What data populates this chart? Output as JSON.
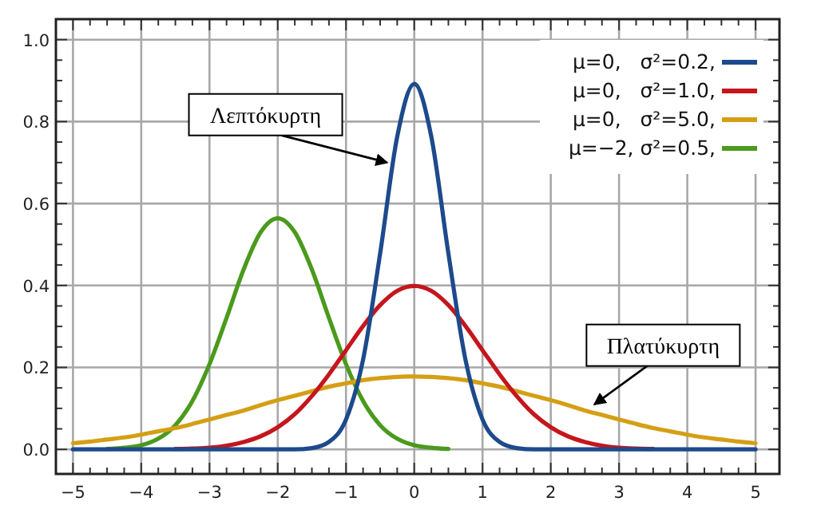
{
  "chart_data": {
    "type": "line",
    "x": [
      -5,
      -4.75,
      -4.5,
      -4.25,
      -4,
      -3.75,
      -3.5,
      -3.25,
      -3,
      -2.75,
      -2.5,
      -2.25,
      -2,
      -1.75,
      -1.5,
      -1.25,
      -1,
      -0.75,
      -0.5,
      -0.25,
      0,
      0.25,
      0.5,
      0.75,
      1,
      1.25,
      1.5,
      1.75,
      2,
      2.25,
      2.5,
      2.75,
      3,
      3.25,
      3.5,
      3.75,
      4,
      4.25,
      4.5,
      4.75,
      5
    ],
    "series": [
      {
        "name": "μ=0,   σ²=0.2,",
        "color": "#1d4a8c",
        "values": [
          0,
          0,
          0,
          0,
          0,
          0,
          0,
          0,
          0,
          0,
          0,
          0,
          0,
          0,
          0.003,
          0.018,
          0.073,
          0.219,
          0.478,
          0.763,
          0.892,
          0.763,
          0.478,
          0.219,
          0.073,
          0.018,
          0.003,
          0,
          0,
          0,
          0,
          0,
          0,
          0,
          0,
          0,
          0,
          0,
          0,
          0,
          0
        ]
      },
      {
        "name": "μ=0,   σ²=1.0,",
        "color": "#c4161c",
        "values": [
          null,
          null,
          null,
          null,
          null,
          null,
          0.001,
          0.002,
          0.004,
          0.009,
          0.018,
          0.032,
          0.054,
          0.086,
          0.13,
          0.183,
          0.242,
          0.301,
          0.352,
          0.387,
          0.399,
          0.387,
          0.352,
          0.301,
          0.242,
          0.183,
          0.13,
          0.086,
          0.054,
          0.032,
          0.018,
          0.009,
          0.004,
          0.002,
          0.001,
          null,
          null,
          null,
          null,
          null,
          null
        ]
      },
      {
        "name": "μ=0,   σ²=5.0,",
        "color": "#d59f14",
        "values": [
          0.015,
          0.019,
          0.024,
          0.029,
          0.036,
          0.044,
          0.052,
          0.062,
          0.073,
          0.084,
          0.095,
          0.108,
          0.12,
          0.131,
          0.142,
          0.153,
          0.161,
          0.169,
          0.174,
          0.177,
          0.178,
          0.177,
          0.174,
          0.169,
          0.161,
          0.153,
          0.142,
          0.131,
          0.12,
          0.108,
          0.095,
          0.084,
          0.073,
          0.062,
          0.052,
          0.044,
          0.036,
          0.029,
          0.024,
          0.019,
          0.015
        ]
      },
      {
        "name": "μ=−2, σ²=0.5,",
        "color": "#4a9a1c",
        "values": [
          null,
          null,
          0.001,
          0.004,
          0.01,
          0.026,
          0.059,
          0.118,
          0.208,
          0.321,
          0.439,
          0.53,
          0.564,
          0.53,
          0.439,
          0.321,
          0.208,
          0.118,
          0.059,
          0.026,
          0.01,
          0.004,
          0.001,
          null,
          null,
          null,
          null,
          null,
          null,
          null,
          null,
          null,
          null,
          null,
          null,
          null,
          null,
          null,
          null,
          null,
          null
        ]
      }
    ],
    "xlim": [
      -5.25,
      5.35
    ],
    "ylim": [
      -0.06,
      1.05
    ],
    "xticks": [
      -5,
      {
        "value": -4.75,
        "label": null
      },
      {
        "value": -4.5,
        "label": null
      },
      {
        "value": -4.25,
        "label": null
      },
      -4,
      {
        "value": -3.75,
        "label": null
      },
      {
        "value": -3.5,
        "label": null
      },
      {
        "value": -3.25,
        "label": null
      },
      -3,
      {
        "value": -2.75,
        "label": null
      },
      {
        "value": -2.5,
        "label": null
      },
      {
        "value": -2.25,
        "label": null
      },
      -2,
      {
        "value": -1.75,
        "label": null
      },
      {
        "value": -1.5,
        "label": null
      },
      {
        "value": -1.25,
        "label": null
      },
      -1,
      {
        "value": -0.75,
        "label": null
      },
      {
        "value": -0.5,
        "label": null
      },
      {
        "value": -0.25,
        "label": null
      },
      0,
      {
        "value": 0.25,
        "label": null
      },
      {
        "value": 0.5,
        "label": null
      },
      {
        "value": 0.75,
        "label": null
      },
      1,
      {
        "value": 1.25,
        "label": null
      },
      {
        "value": 1.5,
        "label": null
      },
      {
        "value": 1.75,
        "label": null
      },
      2,
      {
        "value": 2.25,
        "label": null
      },
      {
        "value": 2.5,
        "label": null
      },
      {
        "value": 2.75,
        "label": null
      },
      3,
      {
        "value": 3.25,
        "label": null
      },
      {
        "value": 3.5,
        "label": null
      },
      {
        "value": 3.75,
        "label": null
      },
      4,
      {
        "value": 4.25,
        "label": null
      },
      {
        "value": 4.5,
        "label": null
      },
      {
        "value": 4.75,
        "label": null
      },
      5
    ],
    "yticks": [
      {
        "value": 0,
        "label": "0.0"
      },
      {
        "value": 0.05,
        "label": null
      },
      {
        "value": 0.1,
        "label": null
      },
      {
        "value": 0.15,
        "label": null
      },
      0.2,
      {
        "value": 0.25,
        "label": null
      },
      {
        "value": 0.3,
        "label": null
      },
      {
        "value": 0.35,
        "label": null
      },
      0.4,
      {
        "value": 0.45,
        "label": null
      },
      {
        "value": 0.5,
        "label": null
      },
      {
        "value": 0.55,
        "label": null
      },
      0.6,
      {
        "value": 0.65,
        "label": null
      },
      {
        "value": 0.7,
        "label": null
      },
      {
        "value": 0.75,
        "label": null
      },
      0.8,
      {
        "value": 0.85,
        "label": null
      },
      {
        "value": 0.9,
        "label": null
      },
      {
        "value": 0.95,
        "label": null
      },
      {
        "value": 1,
        "label": "1.0"
      }
    ],
    "grid": true,
    "legend": "top right",
    "marker": "none",
    "line_style": "solid",
    "annotations": [
      {
        "text": "Λεπτόκυρτη",
        "x": -0.4,
        "y": 0.7
      },
      {
        "text": "Πλατύκυρτη",
        "x": 2.64,
        "y": 0.11
      }
    ]
  }
}
